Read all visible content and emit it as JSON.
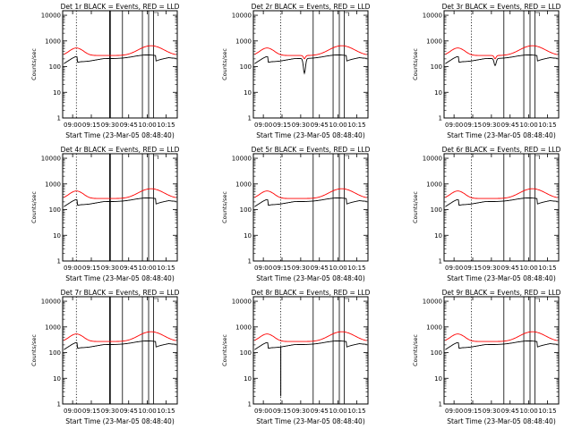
{
  "figure": {
    "xlabel": "Start Time (23-Mar-05 08:48:40)",
    "ylabel": "Counts/sec",
    "yscale": "log",
    "ylim": [
      1,
      15000
    ],
    "xlim": [
      "08:52",
      "10:24"
    ],
    "yticks": [
      1,
      10,
      100,
      1000,
      10000
    ],
    "ytick_labels": [
      "1",
      "10",
      "100",
      "1000",
      "10000"
    ],
    "xticks": [
      "09:00",
      "09:15",
      "09:30",
      "09:45",
      "10:00",
      "10:15"
    ],
    "colors": {
      "events": "#000000",
      "lld": "#ff0000",
      "frame": "#000000"
    }
  },
  "chart_data": [
    {
      "type": "line",
      "title": "Det 1r BLACK = Events, RED = LLD",
      "series": [
        {
          "name": "Events",
          "color": "#000000"
        },
        {
          "name": "LLD",
          "color": "#ff0000"
        }
      ],
      "markers": {
        "dotted": [
          "09:03"
        ],
        "solid_thick": [
          "09:30"
        ],
        "solid": [
          "09:40",
          "09:56",
          "10:01",
          "10:05"
        ]
      },
      "features": {
        "events_dip": null,
        "events_spike": null
      }
    },
    {
      "type": "line",
      "title": "Det 2r BLACK = Events, RED = LLD",
      "series": [
        {
          "name": "Events",
          "color": "#000000"
        },
        {
          "name": "LLD",
          "color": "#ff0000"
        }
      ],
      "markers": {
        "dotted": [
          "09:14"
        ],
        "solid_thick": [],
        "solid": [
          "09:40",
          "09:56",
          "10:01",
          "10:05"
        ]
      },
      "features": {
        "events_dip": {
          "t": "09:33",
          "value": 55
        },
        "events_spike": null
      }
    },
    {
      "type": "line",
      "title": "Det 3r BLACK = Events, RED = LLD",
      "series": [
        {
          "name": "Events",
          "color": "#000000"
        },
        {
          "name": "LLD",
          "color": "#ff0000"
        }
      ],
      "markers": {
        "dotted": [
          "09:14"
        ],
        "solid_thick": [],
        "solid": [
          "09:40",
          "09:56",
          "10:01",
          "10:05"
        ]
      },
      "features": {
        "events_dip": {
          "t": "09:33",
          "value": 110
        },
        "events_spike": null
      }
    },
    {
      "type": "line",
      "title": "Det 4r BLACK = Events, RED = LLD",
      "series": [
        {
          "name": "Events",
          "color": "#000000"
        },
        {
          "name": "LLD",
          "color": "#ff0000"
        }
      ],
      "markers": {
        "dotted": [
          "09:03"
        ],
        "solid_thick": [
          "09:30"
        ],
        "solid": [
          "09:40",
          "09:56",
          "10:01",
          "10:05"
        ]
      },
      "features": {
        "events_dip": null,
        "events_spike": null
      }
    },
    {
      "type": "line",
      "title": "Det 5r BLACK = Events, RED = LLD",
      "series": [
        {
          "name": "Events",
          "color": "#000000"
        },
        {
          "name": "LLD",
          "color": "#ff0000"
        }
      ],
      "markers": {
        "dotted": [
          "09:14"
        ],
        "solid_thick": [],
        "solid": [
          "09:40",
          "09:56",
          "10:01",
          "10:05"
        ]
      },
      "features": {
        "events_dip": null,
        "events_spike": null
      }
    },
    {
      "type": "line",
      "title": "Det 6r BLACK = Events, RED = LLD",
      "series": [
        {
          "name": "Events",
          "color": "#000000"
        },
        {
          "name": "LLD",
          "color": "#ff0000"
        }
      ],
      "markers": {
        "dotted": [
          "09:14"
        ],
        "solid_thick": [],
        "solid": [
          "09:40",
          "09:56",
          "10:01",
          "10:05"
        ]
      },
      "features": {
        "events_dip": null,
        "events_spike": null
      }
    },
    {
      "type": "line",
      "title": "Det 7r BLACK = Events, RED = LLD",
      "series": [
        {
          "name": "Events",
          "color": "#000000"
        },
        {
          "name": "LLD",
          "color": "#ff0000"
        }
      ],
      "markers": {
        "dotted": [
          "09:03"
        ],
        "solid_thick": [
          "09:30"
        ],
        "solid": [
          "09:40",
          "09:56",
          "10:01",
          "10:05"
        ]
      },
      "features": {
        "events_dip": null,
        "events_spike": null
      }
    },
    {
      "type": "line",
      "title": "Det 8r BLACK = Events, RED = LLD",
      "series": [
        {
          "name": "Events",
          "color": "#000000"
        },
        {
          "name": "LLD",
          "color": "#ff0000"
        }
      ],
      "markers": {
        "dotted": [
          "09:14"
        ],
        "solid_thick": [],
        "solid": [
          "09:40",
          "09:56",
          "10:01",
          "10:05"
        ]
      },
      "features": {
        "events_dip": null,
        "events_spike": {
          "t": "09:14",
          "value": 2
        }
      }
    },
    {
      "type": "line",
      "title": "Det 9r BLACK = Events, RED = LLD",
      "series": [
        {
          "name": "Events",
          "color": "#000000"
        },
        {
          "name": "LLD",
          "color": "#ff0000"
        }
      ],
      "markers": {
        "dotted": [
          "09:14"
        ],
        "solid_thick": [],
        "solid": [
          "09:40",
          "09:56",
          "10:01",
          "10:05"
        ]
      },
      "features": {
        "events_dip": null,
        "events_spike": null
      }
    }
  ]
}
